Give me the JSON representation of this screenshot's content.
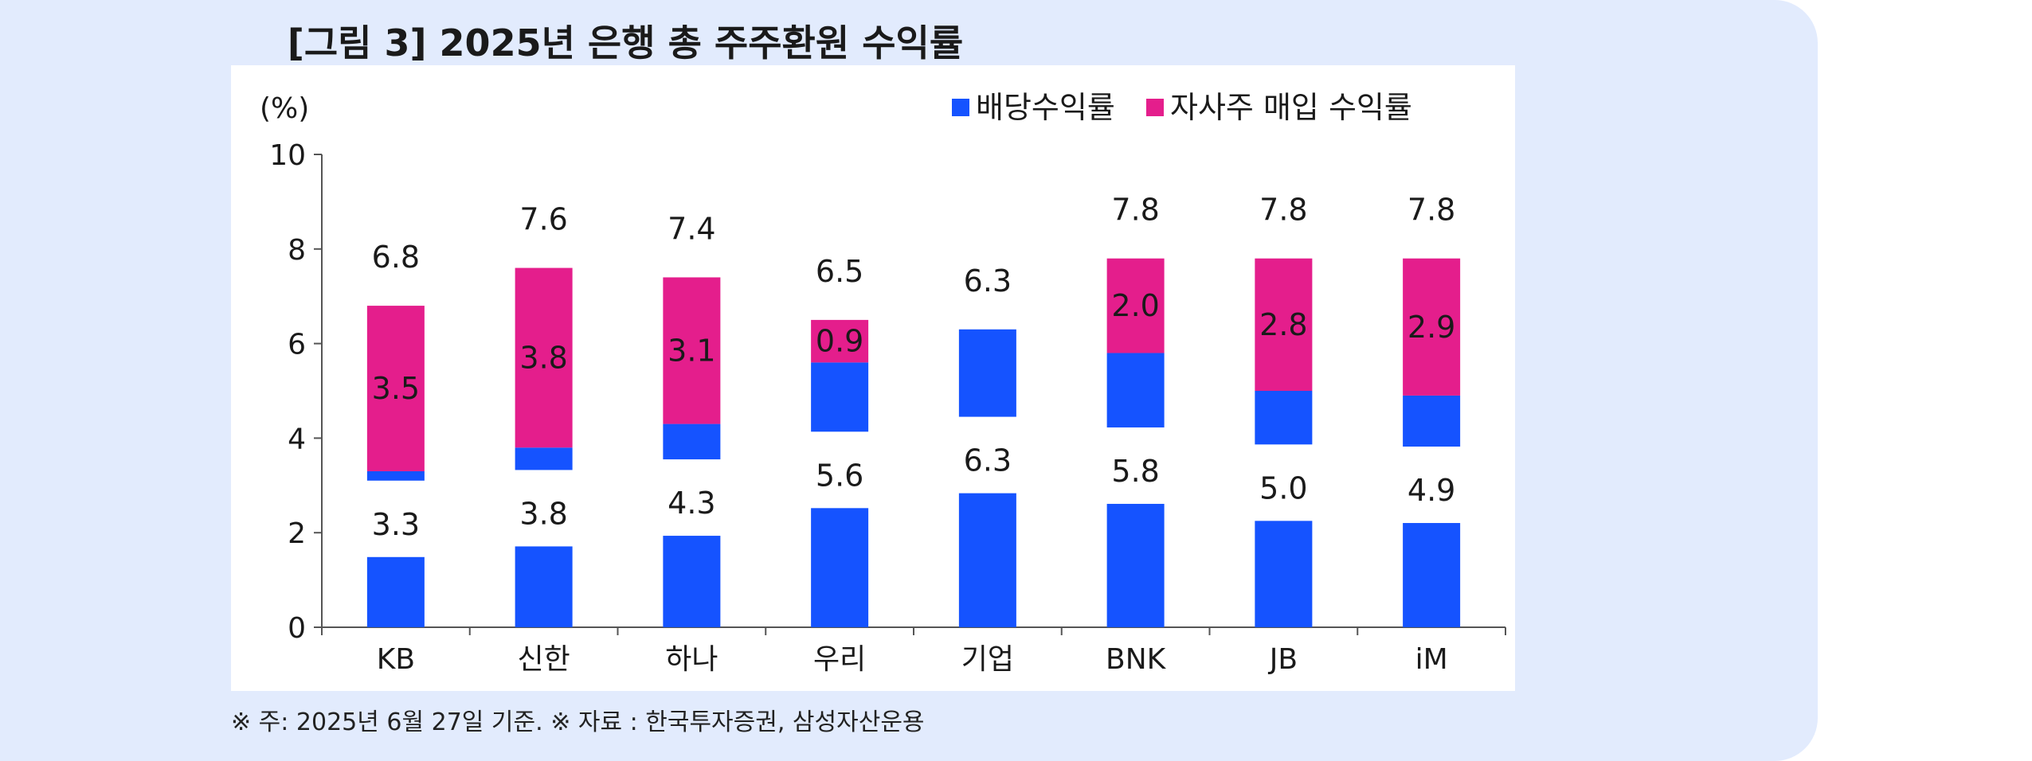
{
  "title": "[그림 3] 2025년 은행 총 주주환원 수익률",
  "footnote": "※ 주: 2025년 6월 27일 기준. ※ 자료 : 한국투자증권, 삼성자산운용",
  "colors": {
    "dividend": "#1553ff",
    "buyback": "#e41e8c",
    "background": "#e2ebfd"
  },
  "chart_data": {
    "type": "bar",
    "stacked": true,
    "unit_label": "(%)",
    "categories": [
      "KB",
      "신한",
      "하나",
      "우리",
      "기업",
      "BNK",
      "JB",
      "iM"
    ],
    "series": [
      {
        "name": "배당수익률",
        "values": [
          3.3,
          3.8,
          4.3,
          5.6,
          6.3,
          5.8,
          5.0,
          4.9
        ]
      },
      {
        "name": "자사주 매입 수익률",
        "values": [
          3.5,
          3.8,
          3.1,
          0.9,
          0.0,
          2.0,
          2.8,
          2.9
        ]
      }
    ],
    "dividend_labels": [
      "3.3",
      "3.8",
      "4.3",
      "5.6",
      "6.3",
      "5.8",
      "5.0",
      "4.9"
    ],
    "buyback_labels": [
      "3.5",
      "3.8",
      "3.1",
      "0.9",
      "",
      "2.0",
      "2.8",
      "2.9"
    ],
    "total_labels": [
      "6.8",
      "7.6",
      "7.4",
      "6.5",
      "6.3",
      "7.8",
      "7.8",
      "7.8"
    ],
    "y_ticks": [
      "0",
      "2",
      "4",
      "6",
      "8",
      "10"
    ],
    "ylim": [
      0,
      10
    ],
    "legend_position": "top-right",
    "grid": false
  }
}
